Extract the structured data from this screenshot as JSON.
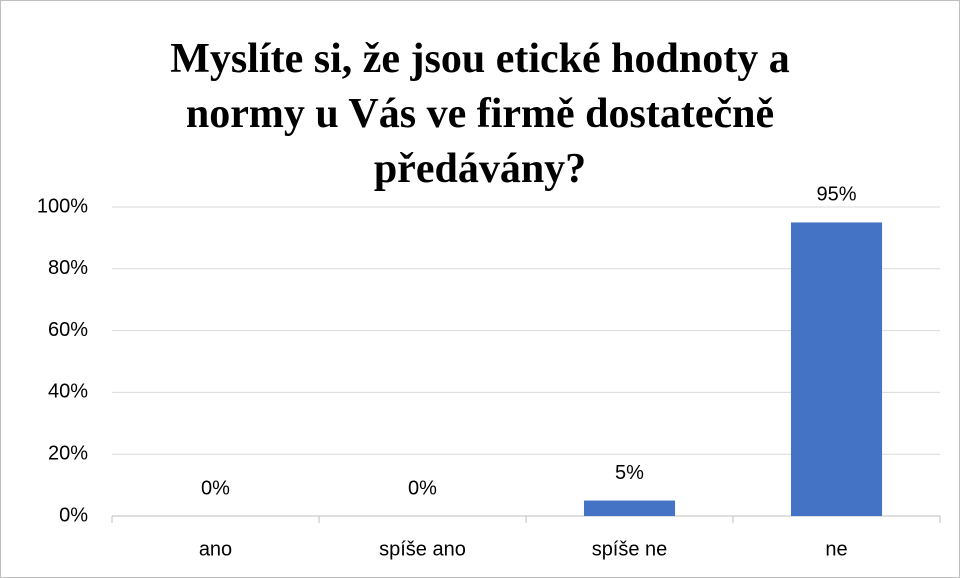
{
  "chart_data": {
    "type": "bar",
    "title": "Myslíte si, že jsou etické hodnoty a normy u Vás ve firmě dostatečně předávány?",
    "categories": [
      "ano",
      "spíše ano",
      "spíše ne",
      "ne"
    ],
    "values": [
      0,
      0,
      5,
      95
    ],
    "value_labels": [
      "0%",
      "0%",
      "5%",
      "95%"
    ],
    "color": "#4472c4",
    "ylim": [
      0,
      100
    ],
    "yticks": [
      {
        "value": 0,
        "label": "0%"
      },
      {
        "value": 20,
        "label": "20%"
      },
      {
        "value": 40,
        "label": "40%"
      },
      {
        "value": 60,
        "label": "60%"
      },
      {
        "value": 80,
        "label": "80%"
      },
      {
        "value": 100,
        "label": "100%"
      }
    ],
    "grid": true
  }
}
